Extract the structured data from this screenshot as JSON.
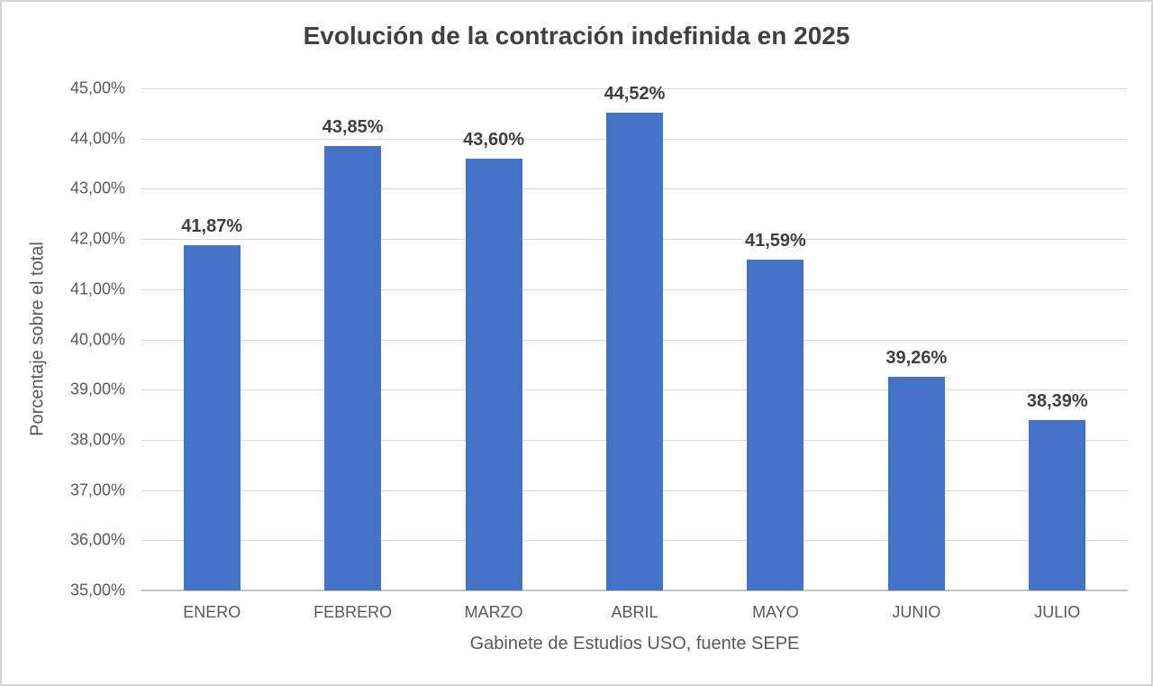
{
  "chart_data": {
    "type": "bar",
    "title": "Evolución de la contración indefinida en 2025",
    "xlabel": "Gabinete de Estudios USO, fuente SEPE",
    "ylabel": "Porcentaje sobre el total",
    "categories": [
      "ENERO",
      "FEBRERO",
      "MARZO",
      "ABRIL",
      "MAYO",
      "JUNIO",
      "JULIO"
    ],
    "values": [
      41.87,
      43.85,
      43.6,
      44.52,
      41.59,
      39.26,
      38.39
    ],
    "data_labels": [
      "41,87%",
      "43,85%",
      "43,60%",
      "44,52%",
      "41,59%",
      "39,26%",
      "38,39%"
    ],
    "ylim": [
      35,
      45
    ],
    "y_tick_step": 1,
    "y_tick_labels_top_to_bottom": [
      "45,00%",
      "44,00%",
      "43,00%",
      "42,00%",
      "41,00%",
      "40,00%",
      "39,00%",
      "38,00%",
      "37,00%",
      "36,00%",
      "35,00%"
    ],
    "grid": true,
    "legend": false,
    "colors": {
      "bar": "#4472C4",
      "gridline": "#d9d9d9",
      "axis_line": "#c3c3c3",
      "title": "#404040",
      "data_label": "#3f3f3f",
      "tick_label": "#595959",
      "background": "#ffffff",
      "frame_border": "#d4d4d4"
    }
  }
}
